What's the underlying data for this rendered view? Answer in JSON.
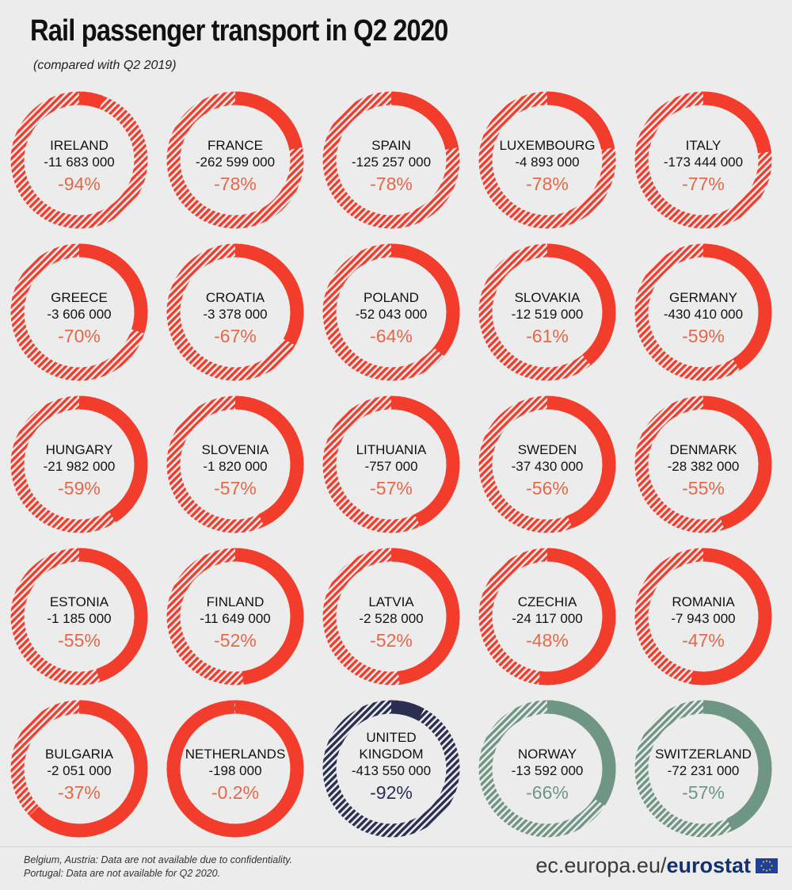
{
  "title": "Rail passenger transport in Q2 2020",
  "subtitle": "(compared with Q2 2019)",
  "notes": [
    "Belgium, Austria: Data are not available due to confidentiality.",
    "Portugal: Data are not available for Q2 2020."
  ],
  "source_prefix": "ec.europa.eu/",
  "source_brand": "eurostat",
  "colors": {
    "eu": "#f23d2c",
    "eu_pct": "#e46849",
    "uk": "#2b2d52",
    "efta": "#6f9585",
    "background": "#ececec"
  },
  "chart_data": {
    "type": "donut",
    "items": [
      {
        "country": [
          "IRELAND"
        ],
        "absolute": "-11 683 000",
        "percent_label": "-94%",
        "percent": -94,
        "group": "eu"
      },
      {
        "country": [
          "FRANCE"
        ],
        "absolute": "-262 599 000",
        "percent_label": "-78%",
        "percent": -78,
        "group": "eu"
      },
      {
        "country": [
          "SPAIN"
        ],
        "absolute": "-125 257 000",
        "percent_label": "-78%",
        "percent": -78,
        "group": "eu"
      },
      {
        "country": [
          "LUXEMBOURG"
        ],
        "absolute": "-4 893 000",
        "percent_label": "-78%",
        "percent": -78,
        "group": "eu"
      },
      {
        "country": [
          "ITALY"
        ],
        "absolute": "-173 444 000",
        "percent_label": "-77%",
        "percent": -77,
        "group": "eu"
      },
      {
        "country": [
          "GREECE"
        ],
        "absolute": "-3 606 000",
        "percent_label": "-70%",
        "percent": -70,
        "group": "eu"
      },
      {
        "country": [
          "CROATIA"
        ],
        "absolute": "-3 378 000",
        "percent_label": "-67%",
        "percent": -67,
        "group": "eu"
      },
      {
        "country": [
          "POLAND"
        ],
        "absolute": "-52 043 000",
        "percent_label": "-64%",
        "percent": -64,
        "group": "eu"
      },
      {
        "country": [
          "SLOVAKIA"
        ],
        "absolute": "-12 519 000",
        "percent_label": "-61%",
        "percent": -61,
        "group": "eu"
      },
      {
        "country": [
          "GERMANY"
        ],
        "absolute": "-430 410 000",
        "percent_label": "-59%",
        "percent": -59,
        "group": "eu"
      },
      {
        "country": [
          "HUNGARY"
        ],
        "absolute": "-21 982 000",
        "percent_label": "-59%",
        "percent": -59,
        "group": "eu"
      },
      {
        "country": [
          "SLOVENIA"
        ],
        "absolute": "-1 820 000",
        "percent_label": "-57%",
        "percent": -57,
        "group": "eu"
      },
      {
        "country": [
          "LITHUANIA"
        ],
        "absolute": "-757 000",
        "percent_label": "-57%",
        "percent": -57,
        "group": "eu"
      },
      {
        "country": [
          "SWEDEN"
        ],
        "absolute": "-37 430 000",
        "percent_label": "-56%",
        "percent": -56,
        "group": "eu"
      },
      {
        "country": [
          "DENMARK"
        ],
        "absolute": "-28 382 000",
        "percent_label": "-55%",
        "percent": -55,
        "group": "eu"
      },
      {
        "country": [
          "ESTONIA"
        ],
        "absolute": "-1 185 000",
        "percent_label": "-55%",
        "percent": -55,
        "group": "eu"
      },
      {
        "country": [
          "FINLAND"
        ],
        "absolute": "-11 649 000",
        "percent_label": "-52%",
        "percent": -52,
        "group": "eu"
      },
      {
        "country": [
          "LATVIA"
        ],
        "absolute": "-2 528 000",
        "percent_label": "-52%",
        "percent": -52,
        "group": "eu"
      },
      {
        "country": [
          "CZECHIA"
        ],
        "absolute": "-24 117 000",
        "percent_label": "-48%",
        "percent": -48,
        "group": "eu"
      },
      {
        "country": [
          "ROMANIA"
        ],
        "absolute": "-7 943 000",
        "percent_label": "-47%",
        "percent": -47,
        "group": "eu"
      },
      {
        "country": [
          "BULGARIA"
        ],
        "absolute": "-2 051 000",
        "percent_label": "-37%",
        "percent": -37,
        "group": "eu"
      },
      {
        "country": [
          "NETHERLANDS"
        ],
        "absolute": "-198 000",
        "percent_label": "-0.2%",
        "percent": -0.2,
        "group": "eu"
      },
      {
        "country": [
          "UNITED",
          "KINGDOM"
        ],
        "absolute": "-413 550 000",
        "percent_label": "-92%",
        "percent": -92,
        "group": "uk"
      },
      {
        "country": [
          "NORWAY"
        ],
        "absolute": "-13 592 000",
        "percent_label": "-66%",
        "percent": -66,
        "group": "efta"
      },
      {
        "country": [
          "SWITZERLAND"
        ],
        "absolute": "-72 231 000",
        "percent_label": "-57%",
        "percent": -57,
        "group": "efta"
      }
    ]
  }
}
